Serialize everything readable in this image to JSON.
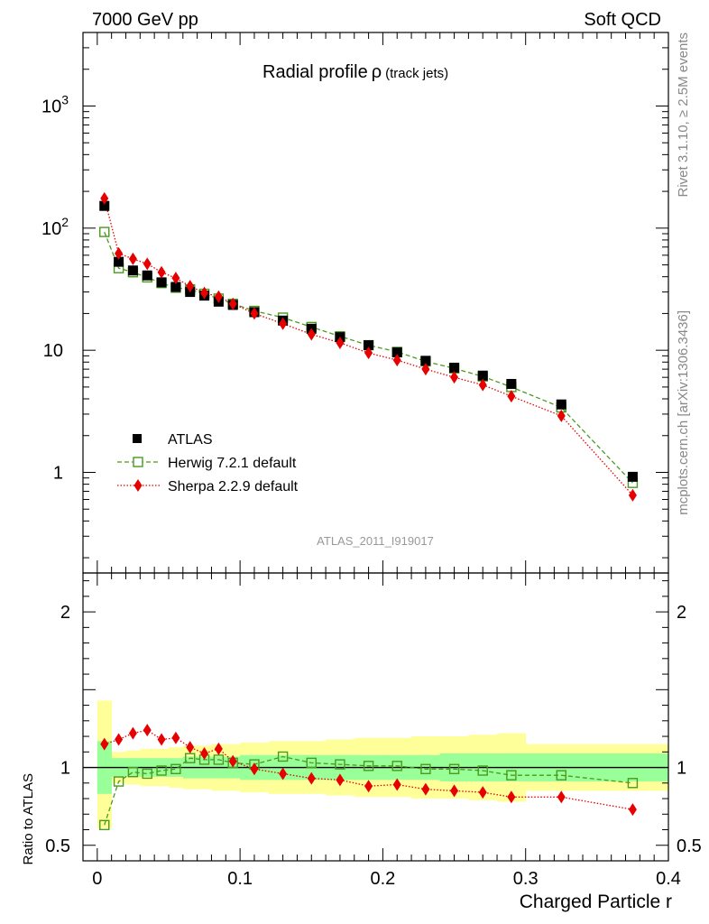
{
  "header": {
    "left": "7000 GeV pp",
    "right": "Soft QCD"
  },
  "side": {
    "rivet": "Rivet 3.1.10, ≥ 2.5M events",
    "mcplots": "mcplots.cern.ch [arXiv:1306.3436]"
  },
  "colors": {
    "atlas": "#000000",
    "herwig": "#4a9a1e",
    "sherpa": "#e60000",
    "band_green": "#99ff99",
    "band_yellow": "#ffff99"
  },
  "chart_data": [
    {
      "type": "scatter",
      "title": "Radial profile",
      "title_symbol": "ρ",
      "title_suffix": "(track jets)",
      "analysis": "ATLAS_2011_I919017",
      "xlabel": "",
      "ylabel": "",
      "xlim": [
        -0.01,
        0.4
      ],
      "ylim": [
        0.15,
        4000
      ],
      "yscale": "log",
      "grid": false,
      "legend_position": "left",
      "x": [
        0.005,
        0.015,
        0.025,
        0.035,
        0.045,
        0.055,
        0.065,
        0.075,
        0.085,
        0.095,
        0.11,
        0.13,
        0.15,
        0.17,
        0.19,
        0.21,
        0.23,
        0.25,
        0.27,
        0.29,
        0.325,
        0.375
      ],
      "series": [
        {
          "name": "ATLAS",
          "values": [
            152,
            53,
            45,
            41,
            36,
            33,
            30,
            28,
            25,
            23.5,
            20.5,
            17.5,
            15,
            12.8,
            11,
            9.6,
            8.2,
            7.2,
            6.2,
            5.3,
            3.6,
            0.92
          ]
        },
        {
          "name": "Herwig 7.2.1 default",
          "values": [
            93,
            47,
            43.5,
            39.5,
            35.5,
            32.5,
            31.5,
            29,
            26.5,
            24,
            21,
            18.5,
            15.5,
            13,
            11,
            9.7,
            8.1,
            7.1,
            6.1,
            5,
            3.4,
            0.82
          ]
        },
        {
          "name": "Sherpa 2.2.9 default",
          "values": [
            175,
            62,
            56,
            51,
            43.5,
            39,
            33.5,
            29.5,
            27.5,
            24,
            20,
            16.5,
            13.5,
            11.5,
            9.5,
            8.3,
            7,
            6,
            5.2,
            4.2,
            2.9,
            0.65
          ]
        }
      ]
    },
    {
      "type": "scatter",
      "title": "",
      "xlabel": "Charged Particle r",
      "ylabel": "Ratio to ATLAS",
      "xlim": [
        -0.01,
        0.4
      ],
      "ylim": [
        0.4,
        2.25
      ],
      "grid": false,
      "x": [
        0.005,
        0.015,
        0.025,
        0.035,
        0.045,
        0.055,
        0.065,
        0.075,
        0.085,
        0.095,
        0.11,
        0.13,
        0.15,
        0.17,
        0.19,
        0.21,
        0.23,
        0.25,
        0.27,
        0.29,
        0.325,
        0.375
      ],
      "x_edges": [
        0,
        0.01,
        0.02,
        0.03,
        0.04,
        0.05,
        0.06,
        0.07,
        0.08,
        0.09,
        0.1,
        0.12,
        0.14,
        0.16,
        0.18,
        0.2,
        0.22,
        0.24,
        0.26,
        0.28,
        0.3,
        0.35,
        0.4
      ],
      "series": [
        {
          "name": "Herwig 7.2.1 default",
          "values": [
            0.63,
            0.91,
            0.97,
            0.96,
            0.98,
            0.99,
            1.06,
            1.05,
            1.05,
            1.03,
            1.02,
            1.07,
            1.03,
            1.02,
            1.01,
            1.01,
            0.99,
            0.99,
            0.98,
            0.95,
            0.95,
            0.9
          ]
        },
        {
          "name": "Sherpa 2.2.9 default",
          "values": [
            1.15,
            1.18,
            1.22,
            1.24,
            1.18,
            1.19,
            1.13,
            1.09,
            1.12,
            1.04,
            0.99,
            0.96,
            0.93,
            0.92,
            0.88,
            0.89,
            0.86,
            0.85,
            0.84,
            0.81,
            0.81,
            0.73
          ]
        }
      ],
      "band_inner": [
        [
          0.83,
          1.17
        ],
        [
          0.94,
          1.06
        ],
        [
          0.94,
          1.06
        ],
        [
          0.94,
          1.06
        ],
        [
          0.94,
          1.06
        ],
        [
          0.94,
          1.06
        ],
        [
          0.93,
          1.07
        ],
        [
          0.93,
          1.07
        ],
        [
          0.93,
          1.07
        ],
        [
          0.93,
          1.07
        ],
        [
          0.92,
          1.08
        ],
        [
          0.92,
          1.08
        ],
        [
          0.92,
          1.08
        ],
        [
          0.92,
          1.08
        ],
        [
          0.92,
          1.08
        ],
        [
          0.92,
          1.08
        ],
        [
          0.92,
          1.08
        ],
        [
          0.91,
          1.09
        ],
        [
          0.91,
          1.09
        ],
        [
          0.91,
          1.09
        ],
        [
          0.91,
          1.09
        ],
        [
          0.91,
          1.09
        ]
      ],
      "band_outer": [
        [
          0.61,
          1.43
        ],
        [
          0.9,
          1.1
        ],
        [
          0.89,
          1.11
        ],
        [
          0.88,
          1.12
        ],
        [
          0.88,
          1.12
        ],
        [
          0.87,
          1.13
        ],
        [
          0.86,
          1.14
        ],
        [
          0.86,
          1.14
        ],
        [
          0.85,
          1.15
        ],
        [
          0.85,
          1.15
        ],
        [
          0.84,
          1.16
        ],
        [
          0.83,
          1.17
        ],
        [
          0.83,
          1.17
        ],
        [
          0.82,
          1.18
        ],
        [
          0.81,
          1.19
        ],
        [
          0.81,
          1.19
        ],
        [
          0.8,
          1.2
        ],
        [
          0.8,
          1.2
        ],
        [
          0.79,
          1.21
        ],
        [
          0.78,
          1.22
        ],
        [
          0.85,
          1.15
        ],
        [
          0.85,
          1.15
        ]
      ]
    }
  ],
  "axes": {
    "main_y_ticks": [
      {
        "value": 1000,
        "label": "10",
        "sup": "3"
      },
      {
        "value": 100,
        "label": "10",
        "sup": "2"
      },
      {
        "value": 10,
        "label": "10",
        "sup": ""
      },
      {
        "value": 1,
        "label": "1",
        "sup": ""
      }
    ],
    "ratio_y_ticks": [
      {
        "value": 2,
        "label": "2"
      },
      {
        "value": 1,
        "label": "1"
      },
      {
        "value": 0.5,
        "label": "0.5"
      }
    ],
    "x_ticks": [
      {
        "value": 0,
        "label": "0"
      },
      {
        "value": 0.1,
        "label": "0.1"
      },
      {
        "value": 0.2,
        "label": "0.2"
      },
      {
        "value": 0.3,
        "label": "0.3"
      },
      {
        "value": 0.4,
        "label": "0.4"
      }
    ]
  }
}
